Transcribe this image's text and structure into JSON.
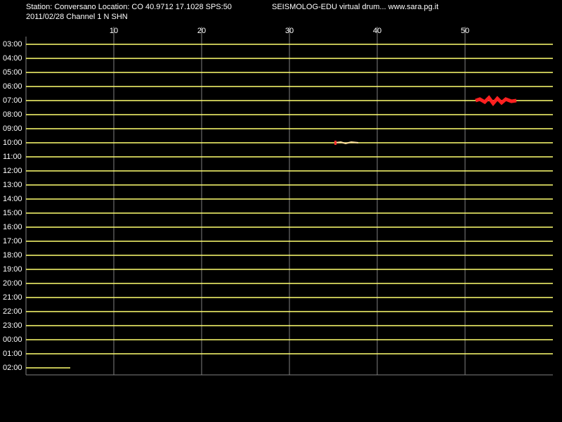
{
  "chart_data": {
    "type": "helicorder",
    "title": "Station: Conversano Location: CO 40.9712 17.1028 SPS:50",
    "subtitle": "2011/02/28  Channel 1 N SHN",
    "annotation": "SEISMOLOG-EDU virtual drum... www.sara.pg.it",
    "xlim": [
      0,
      60
    ],
    "xticks": [
      10,
      20,
      30,
      40,
      50
    ],
    "categories": [
      "03:00",
      "04:00",
      "05:00",
      "06:00",
      "07:00",
      "08:00",
      "09:00",
      "10:00",
      "11:00",
      "12:00",
      "13:00",
      "14:00",
      "15:00",
      "16:00",
      "17:00",
      "18:00",
      "19:00",
      "20:00",
      "21:00",
      "22:00",
      "23:00",
      "00:00",
      "01:00",
      "02:00"
    ]
  }
}
